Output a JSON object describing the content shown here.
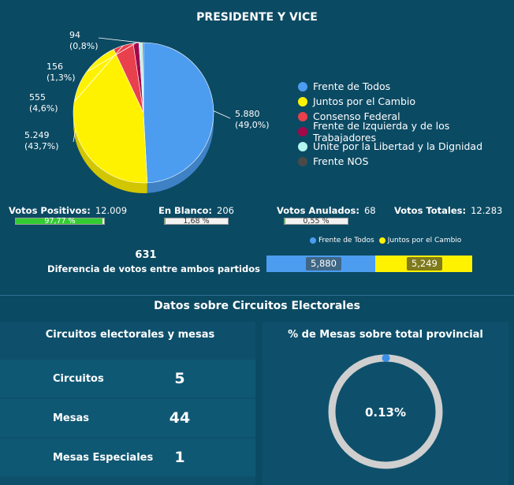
{
  "title": "PRESIDENTE Y VICE",
  "chart_data": [
    {
      "type": "pie",
      "title": "PRESIDENTE Y VICE",
      "legend_position": "right",
      "slices": [
        {
          "label": "Frente de Todos",
          "value": 5880,
          "percent": "49,0%",
          "value_text": "5.880",
          "percent_text": "(49,0%)",
          "color": "#4c9df0"
        },
        {
          "label": "Juntos por el Cambio",
          "value": 5249,
          "percent": "43,7%",
          "value_text": "5.249",
          "percent_text": "(43,7%)",
          "color": "#fff200"
        },
        {
          "label": "Consenso Federal",
          "value": 555,
          "percent": "4,6%",
          "value_text": "555",
          "percent_text": "(4,6%)",
          "color": "#e8404c"
        },
        {
          "label": "Frente de Izquierda y de los Trabajadores",
          "value": 156,
          "percent": "1,3%",
          "value_text": "156",
          "percent_text": "(1,3%)",
          "color": "#a3084a"
        },
        {
          "label": "Unite por la Libertad y la Dignidad",
          "value": 94,
          "percent": "0,8%",
          "value_text": "94",
          "percent_text": "(0,8%)",
          "color": "#b5f5f0"
        },
        {
          "label": "Frente NOS",
          "value": 30,
          "percent": "",
          "value_text": "",
          "percent_text": "",
          "color": "#4a4a4a"
        }
      ]
    },
    {
      "type": "bar",
      "stacked": true,
      "orientation": "horizontal",
      "legend_position": "top",
      "series": [
        {
          "name": "Frente de Todos",
          "value": 5880,
          "label": "5,880",
          "color": "#4c9df0"
        },
        {
          "name": "Juntos por el Cambio",
          "value": 5249,
          "label": "5,249",
          "color": "#fff200"
        }
      ]
    },
    {
      "type": "pie",
      "subtype": "donut",
      "title": "% de Mesas sobre total provincial",
      "value": 0.13,
      "center_label": "0.13%"
    }
  ],
  "stats": {
    "positivos": {
      "label": "Votos Positivos:",
      "value": "12.009",
      "bar_label": "97,77 %",
      "fraction": 0.9777
    },
    "blanco": {
      "label": "En Blanco:",
      "value": "206",
      "bar_label": "1,68 %",
      "fraction": 0.0168
    },
    "anulados": {
      "label": "Votos Anulados:",
      "value": "68",
      "bar_label": "0,55 %",
      "fraction": 0.0055
    },
    "totales": {
      "label": "Votos Totales:",
      "value": "12.283"
    }
  },
  "diferencia": {
    "value": "631",
    "label": "Diferencia de votos entre ambos partidos"
  },
  "circuitos_section": {
    "title": "Datos sobre Circuitos Electorales",
    "table_title": "Circuitos electorales y mesas",
    "rows": [
      {
        "label": "Circuitos",
        "value": "5"
      },
      {
        "label": "Mesas",
        "value": "44"
      },
      {
        "label": "Mesas Especiales",
        "value": "1"
      }
    ],
    "gauge_title": "% de Mesas sobre total provincial"
  },
  "colors": {
    "background": "#0b4a63",
    "panel": "#0e506b",
    "green": "#33cc33",
    "gauge_ring": "#cfcfcf",
    "gauge_marker": "#3a8ee8"
  }
}
